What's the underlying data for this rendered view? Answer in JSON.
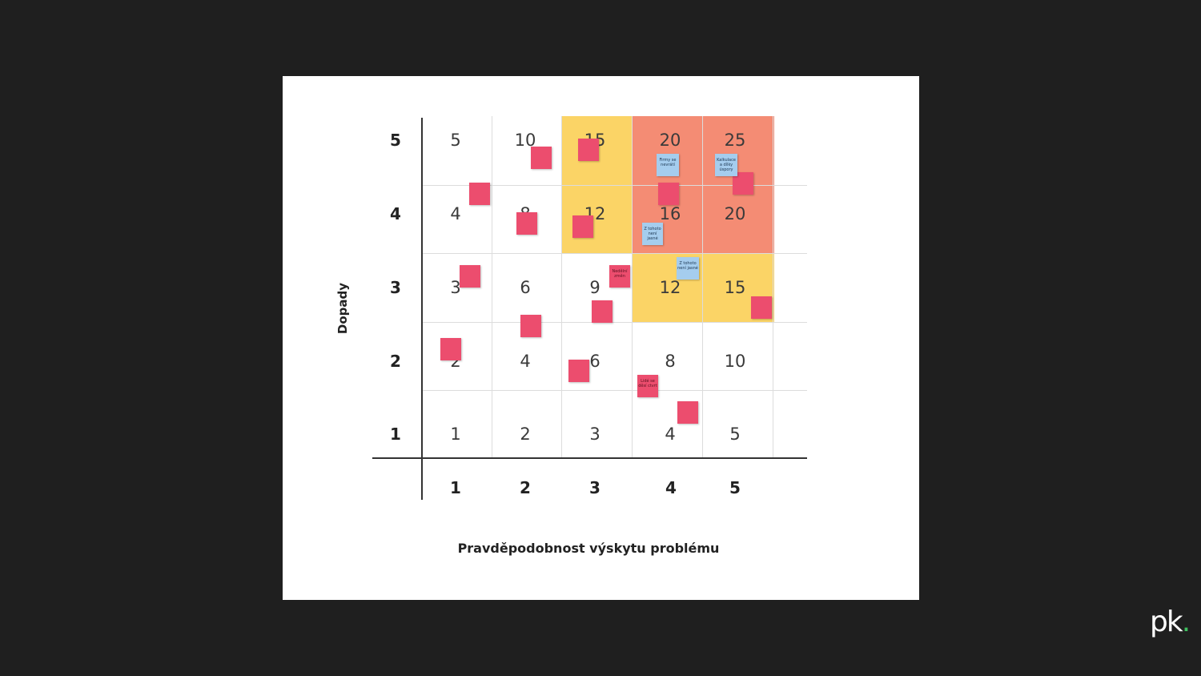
{
  "diagram": {
    "y_axis_title": "Dopady",
    "x_axis_title": "Pravděpodobnost výskytu problému",
    "y_axis_labels": [
      "5",
      "4",
      "3",
      "2",
      "1"
    ],
    "x_axis_labels": [
      "1",
      "2",
      "3",
      "4",
      "5"
    ],
    "rows": [
      [
        "5",
        "10",
        "15",
        "20",
        "25"
      ],
      [
        "4",
        "8",
        "12",
        "16",
        "20"
      ],
      [
        "3",
        "6",
        "9",
        "12",
        "15"
      ],
      [
        "2",
        "4",
        "6",
        "8",
        "10"
      ],
      [
        "1",
        "2",
        "3",
        "4",
        "5"
      ]
    ],
    "colors": {
      "high_risk": "#f48c74",
      "medium_risk": "#fbd466",
      "note_pink": "#ec4d6e",
      "note_blue": "#a5cdee"
    },
    "notes": {
      "n_blue_top": "Firmy se nevrátí",
      "n_blue_kalk": "Kalkulace a dílky úspory",
      "n_blue_1": "Z tohoto není jasné",
      "n_blue_2": "Z tohoto není jasné",
      "n_pink_zmeni": "Nedělní změn",
      "n_pink_ctverec": "Lidé se děsí ctvrt"
    }
  },
  "logo": {
    "text": "pk",
    "dot": "."
  }
}
